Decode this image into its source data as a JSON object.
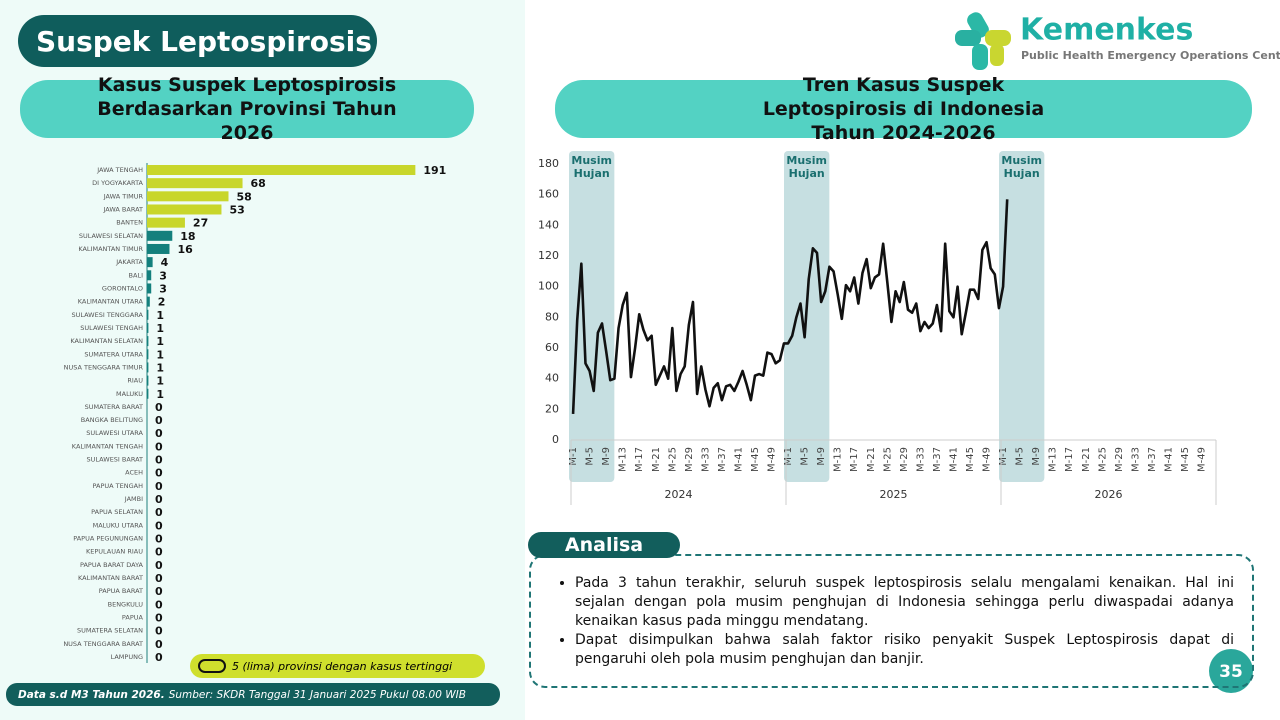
{
  "header": {
    "title": "Suspek Leptospirosis",
    "logo_name": "Kemenkes",
    "logo_subtitle": "Public Health Emergency Operations Center"
  },
  "chart_data": [
    {
      "type": "bar",
      "orientation": "horizontal",
      "title": "Kasus Suspek Leptospirosis Berdasarkan Provinsi Tahun 2026",
      "categories": [
        "JAWA TENGAH",
        "DI YOGYAKARTA",
        "JAWA TIMUR",
        "JAWA BARAT",
        "BANTEN",
        "SULAWESI SELATAN",
        "KALIMANTAN TIMUR",
        "JAKARTA",
        "BALI",
        "GORONTALO",
        "KALIMANTAN UTARA",
        "SULAWESI TENGGARA",
        "SULAWESI TENGAH",
        "KALIMANTAN SELATAN",
        "SUMATERA UTARA",
        "NUSA TENGGARA TIMUR",
        "RIAU",
        "MALUKU",
        "SUMATERA BARAT",
        "BANGKA BELITUNG",
        "SULAWESI UTARA",
        "KALIMANTAN TENGAH",
        "SULAWESI BARAT",
        "ACEH",
        "PAPUA TENGAH",
        "JAMBI",
        "PAPUA SELATAN",
        "MALUKU UTARA",
        "PAPUA PEGUNUNGAN",
        "KEPULAUAN RIAU",
        "PAPUA BARAT DAYA",
        "KALIMANTAN BARAT",
        "PAPUA BARAT",
        "BENGKULU",
        "PAPUA",
        "SUMATERA SELATAN",
        "NUSA TENGGARA BARAT",
        "LAMPUNG"
      ],
      "values": [
        191,
        68,
        58,
        53,
        27,
        18,
        16,
        4,
        3,
        3,
        2,
        1,
        1,
        1,
        1,
        1,
        1,
        1,
        0,
        0,
        0,
        0,
        0,
        0,
        0,
        0,
        0,
        0,
        0,
        0,
        0,
        0,
        0,
        0,
        0,
        0,
        0,
        0
      ],
      "colors": [
        "#c8d62b",
        "#c8d62b",
        "#c8d62b",
        "#c8d62b",
        "#c8d62b",
        "#14807d",
        "#14807d",
        "#14807d",
        "#14807d",
        "#14807d",
        "#14807d",
        "#14807d",
        "#14807d",
        "#14807d",
        "#14807d",
        "#14807d",
        "#14807d",
        "#14807d",
        "#14807d",
        "#14807d",
        "#14807d",
        "#14807d",
        "#14807d",
        "#14807d",
        "#14807d",
        "#14807d",
        "#14807d",
        "#14807d",
        "#14807d",
        "#14807d",
        "#14807d",
        "#14807d",
        "#14807d",
        "#14807d",
        "#14807d",
        "#14807d",
        "#14807d",
        "#14807d"
      ],
      "xlim": [
        0,
        200
      ],
      "note": "5 (lima) provinsi dengan kasus tertinggi"
    },
    {
      "type": "line",
      "title": "Tren Kasus Suspek Leptospirosis di Indonesia Tahun 2024-2026",
      "color": "#111111",
      "grid": false,
      "ylim": [
        0,
        180
      ],
      "yticks": [
        0,
        20,
        40,
        60,
        80,
        100,
        120,
        140,
        160,
        180
      ],
      "categories": [
        "M-1",
        null,
        null,
        null,
        "M-5",
        null,
        null,
        null,
        "M-9",
        null,
        null,
        null,
        "M-13",
        null,
        null,
        null,
        "M-17",
        null,
        null,
        null,
        "M-21",
        null,
        null,
        null,
        "M-25",
        null,
        null,
        null,
        "M-29",
        null,
        null,
        null,
        "M-33",
        null,
        null,
        null,
        "M-37",
        null,
        null,
        null,
        "M-41",
        null,
        null,
        null,
        "M-45",
        null,
        null,
        null,
        "M-49",
        null,
        null,
        null,
        "M-1",
        null,
        null,
        null,
        "M-5",
        null,
        null,
        null,
        "M-9",
        null,
        null,
        null,
        "M-13",
        null,
        null,
        null,
        "M-17",
        null,
        null,
        null,
        "M-21",
        null,
        null,
        null,
        "M-25",
        null,
        null,
        null,
        "M-29",
        null,
        null,
        null,
        "M-33",
        null,
        null,
        null,
        "M-37",
        null,
        null,
        null,
        "M-41",
        null,
        null,
        null,
        "M-45",
        null,
        null,
        null,
        "M-49",
        null,
        null,
        null,
        "M-1",
        null,
        null,
        null,
        "M-5",
        null,
        null,
        null,
        "M-9",
        null,
        null,
        null,
        "M-13",
        null,
        null,
        null,
        "M-17",
        null,
        null,
        null,
        "M-21",
        null,
        null,
        null,
        "M-25",
        null,
        null,
        null,
        "M-29",
        null,
        null,
        null,
        "M-33",
        null,
        null,
        null,
        "M-37",
        null,
        null,
        null,
        "M-41",
        null,
        null,
        null,
        "M-45",
        null,
        null,
        null,
        "M-49",
        null,
        null,
        null
      ],
      "values": [
        17,
        78,
        115,
        50,
        45,
        32,
        70,
        76,
        58,
        39,
        40,
        73,
        88,
        96,
        41,
        60,
        82,
        72,
        65,
        68,
        36,
        42,
        48,
        40,
        73,
        32,
        43,
        48,
        75,
        90,
        30,
        48,
        33,
        22,
        34,
        37,
        26,
        35,
        36,
        32,
        38,
        45,
        36,
        26,
        42,
        43,
        42,
        57,
        56,
        50,
        52,
        63,
        63,
        68,
        80,
        89,
        67,
        105,
        125,
        122,
        90,
        97,
        113,
        110,
        95,
        79,
        101,
        97,
        106,
        89,
        109,
        118,
        99,
        106,
        108,
        128,
        103,
        77,
        97,
        90,
        103,
        85,
        83,
        89,
        71,
        77,
        73,
        76,
        88,
        71,
        128,
        84,
        80,
        100,
        69,
        83,
        98,
        98,
        92,
        124,
        129,
        112,
        108,
        86,
        100,
        157,
        null,
        null,
        null,
        null,
        null,
        null,
        null,
        null,
        null,
        null,
        null,
        null,
        null,
        null,
        null,
        null,
        null,
        null,
        null,
        null,
        null,
        null,
        null,
        null,
        null,
        null,
        null,
        null,
        null,
        null,
        null,
        null,
        null,
        null,
        null,
        null,
        null,
        null,
        null,
        null,
        null,
        null,
        null,
        null,
        null,
        null,
        null,
        null,
        null,
        null
      ],
      "groups": [
        {
          "label": "2024",
          "from": 0,
          "to": 51
        },
        {
          "label": "2025",
          "from": 52,
          "to": 103
        },
        {
          "label": "2026",
          "from": 104,
          "to": 155
        }
      ],
      "bands": [
        {
          "label": "Musim Hujan",
          "from": 0,
          "to": 9
        },
        {
          "label": "Musim Hujan",
          "from": 52,
          "to": 61
        },
        {
          "label": "Musim Hujan",
          "from": 104,
          "to": 113
        }
      ]
    }
  ],
  "analysis": {
    "title": "Analisa",
    "bullets": [
      "Pada 3 tahun terakhir, seluruh suspek leptospirosis selalu mengalami kenaikan. Hal ini sejalan dengan pola musim penghujan di Indonesia sehingga perlu diwaspadai adanya kenaikan kasus pada minggu mendatang.",
      "Dapat disimpulkan bahwa salah faktor risiko penyakit Suspek Leptospirosis dapat di pengaruhi oleh pola musim penghujan dan banjir."
    ]
  },
  "footer": {
    "note_bold": "Data s.d M3 Tahun 2026.",
    "note": "Sumber: SKDR Tanggal 31 Januari 2025 Pukul 08.00 WIB",
    "page": "35"
  }
}
